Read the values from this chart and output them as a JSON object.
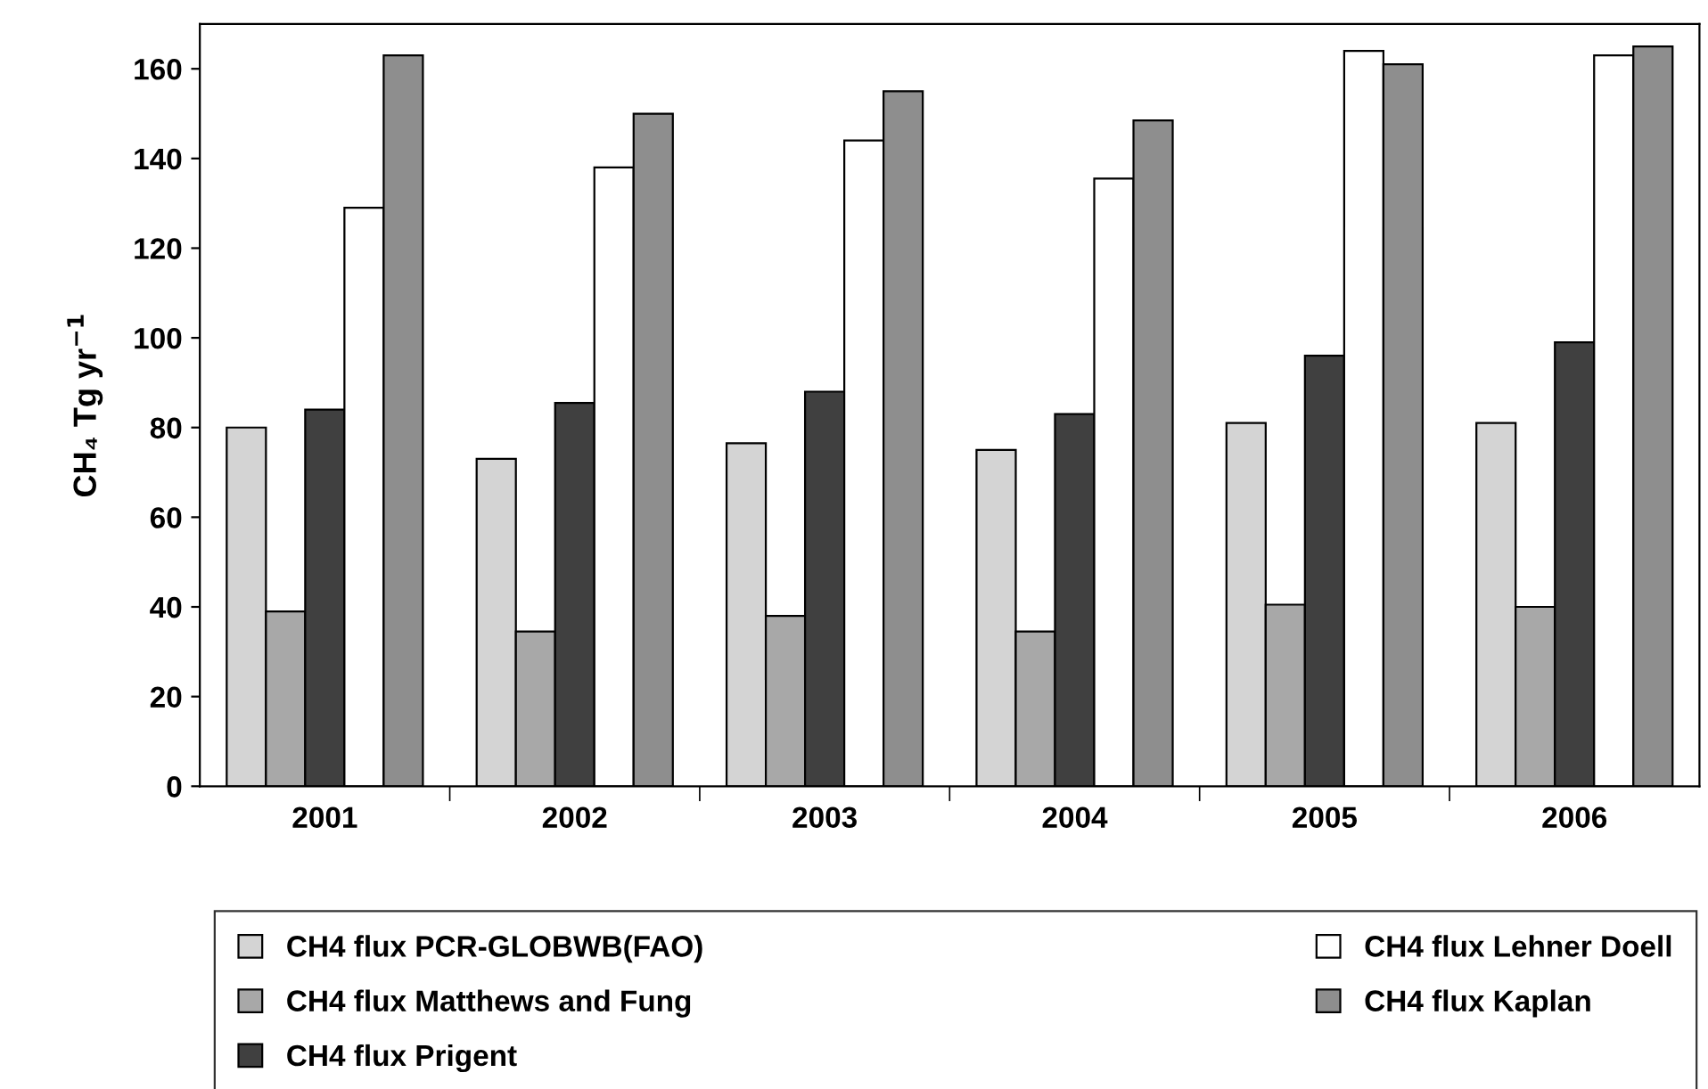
{
  "chart_data": {
    "type": "bar",
    "ylabel": "CH₄ Tg yr$^{−1}$",
    "categories": [
      "2001",
      "2002",
      "2003",
      "2004",
      "2005",
      "2006"
    ],
    "series": [
      {
        "name": "CH4 flux PCR-GLOBWB(FAO)",
        "color": "#d4d4d4",
        "values": [
          80,
          73,
          76.5,
          75,
          81,
          81
        ]
      },
      {
        "name": "CH4 flux Matthews and Fung",
        "color": "#a8a8a8",
        "values": [
          39,
          34.5,
          38,
          34.5,
          40.5,
          40
        ]
      },
      {
        "name": "CH4 flux Prigent",
        "color": "#404040",
        "values": [
          84,
          85.5,
          88,
          83,
          96,
          99
        ]
      },
      {
        "name": "CH4 flux Lehner Doell",
        "color": "#ffffff",
        "values": [
          129,
          138,
          144,
          135.5,
          164,
          163
        ]
      },
      {
        "name": "CH4 flux Kaplan",
        "color": "#8e8e8e",
        "values": [
          163,
          150,
          155,
          148.5,
          161,
          165
        ]
      }
    ],
    "ylim": [
      0,
      170
    ],
    "yticks": [
      0,
      20,
      40,
      60,
      80,
      100,
      120,
      140,
      160
    ],
    "grid": false,
    "legend": "bottom"
  }
}
